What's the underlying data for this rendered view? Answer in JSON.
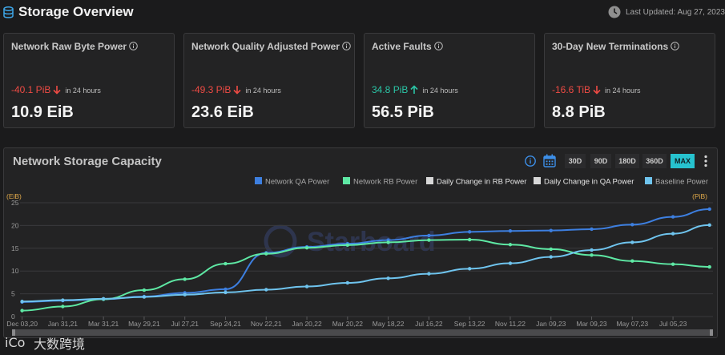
{
  "header": {
    "title": "Storage Overview",
    "last_updated": "Last Updated: Aug 27, 2023",
    "icons": [
      "database-icon",
      "clock-icon"
    ]
  },
  "stats": [
    {
      "title": "Network Raw Byte Power",
      "change": "-40.1 PiB",
      "direction": "down",
      "period": "in 24 hours",
      "value": "10.9 EiB",
      "color": "#ef4b44"
    },
    {
      "title": "Network Quality Adjusted Power",
      "change": "-49.3 PiB",
      "direction": "down",
      "period": "in 24 hours",
      "value": "23.6 EiB",
      "color": "#ef4b44"
    },
    {
      "title": "Active Faults",
      "change": "34.8 PiB",
      "direction": "up",
      "period": "in 24 hours",
      "value": "56.5 PiB",
      "color": "#2bc5a6"
    },
    {
      "title": "30-Day New Terminations",
      "change": "-16.6 TiB",
      "direction": "down",
      "period": "in 24 hours",
      "value": "8.8 PiB",
      "color": "#ef4b44"
    }
  ],
  "chart_panel": {
    "title": "Network Storage Capacity",
    "ranges": [
      "30D",
      "90D",
      "180D",
      "360D",
      "MAX"
    ],
    "active_range": "MAX",
    "watermark": "Starboard"
  },
  "footer": {
    "brand": "大数跨境",
    "logo_text": "iCo"
  },
  "chart_data": {
    "type": "line",
    "legend_position": "top-right",
    "legend": [
      {
        "name": "Network QA Power",
        "color": "#3d7fe0"
      },
      {
        "name": "Network RB Power",
        "color": "#5ee8a4"
      },
      {
        "name": "Daily Change in RB Power",
        "color": "#d8d8d8"
      },
      {
        "name": "Daily Change in QA Power",
        "color": "#d8d8d8"
      },
      {
        "name": "Baseline Power",
        "color": "#6fc4ee"
      }
    ],
    "y_left_unit": "(EiB)",
    "y_right_unit": "(PiB)",
    "ylim": [
      0,
      25
    ],
    "y_ticks": [
      0,
      5,
      10,
      15,
      20,
      25
    ],
    "grid": true,
    "x_range": [
      "2020-11-30",
      "2023-09-01"
    ],
    "x_ticks": [
      {
        "label": "Dec 03,20",
        "date": "2020-12-03"
      },
      {
        "label": "Jan 31,21",
        "date": "2021-01-31"
      },
      {
        "label": "Mar 31,21",
        "date": "2021-03-31"
      },
      {
        "label": "May 29,21",
        "date": "2021-05-29"
      },
      {
        "label": "Jul 27,21",
        "date": "2021-07-27"
      },
      {
        "label": "Sep 24,21",
        "date": "2021-09-24"
      },
      {
        "label": "Nov 22,21",
        "date": "2021-11-22"
      },
      {
        "label": "Jan 20,22",
        "date": "2022-01-20"
      },
      {
        "label": "Mar 20,22",
        "date": "2022-03-20"
      },
      {
        "label": "May 18,22",
        "date": "2022-05-18"
      },
      {
        "label": "Jul 16,22",
        "date": "2022-07-16"
      },
      {
        "label": "Sep 13,22",
        "date": "2022-09-13"
      },
      {
        "label": "Nov 11,22",
        "date": "2022-11-11"
      },
      {
        "label": "Jan 09,23",
        "date": "2023-01-09"
      },
      {
        "label": "Mar 09,23",
        "date": "2023-03-09"
      },
      {
        "label": "May 07,23",
        "date": "2023-05-07"
      },
      {
        "label": "Jul 05,23",
        "date": "2023-07-05"
      }
    ],
    "series": [
      {
        "name": "Network QA Power",
        "color": "#3d7fe0",
        "points": [
          [
            "2020-12-03",
            3.2
          ],
          [
            "2021-01-31",
            3.5
          ],
          [
            "2021-03-31",
            3.8
          ],
          [
            "2021-05-29",
            4.4
          ],
          [
            "2021-07-27",
            5.2
          ],
          [
            "2021-09-24",
            6.0
          ],
          [
            "2021-11-22",
            14.0
          ],
          [
            "2022-01-20",
            15.3
          ],
          [
            "2022-03-20",
            16.0
          ],
          [
            "2022-05-18",
            16.8
          ],
          [
            "2022-07-16",
            17.8
          ],
          [
            "2022-09-13",
            18.6
          ],
          [
            "2022-11-11",
            18.8
          ],
          [
            "2023-01-09",
            18.9
          ],
          [
            "2023-03-09",
            19.2
          ],
          [
            "2023-05-07",
            20.2
          ],
          [
            "2023-07-05",
            21.9
          ],
          [
            "2023-08-27",
            23.6
          ]
        ]
      },
      {
        "name": "Network RB Power",
        "color": "#5ee8a4",
        "points": [
          [
            "2020-12-03",
            1.3
          ],
          [
            "2021-01-31",
            2.2
          ],
          [
            "2021-03-31",
            3.8
          ],
          [
            "2021-05-29",
            5.8
          ],
          [
            "2021-07-27",
            8.2
          ],
          [
            "2021-09-24",
            11.6
          ],
          [
            "2021-11-22",
            13.8
          ],
          [
            "2022-01-20",
            15.1
          ],
          [
            "2022-03-20",
            15.7
          ],
          [
            "2022-05-18",
            16.3
          ],
          [
            "2022-07-16",
            16.8
          ],
          [
            "2022-09-13",
            16.9
          ],
          [
            "2022-11-11",
            15.8
          ],
          [
            "2023-01-09",
            14.8
          ],
          [
            "2023-03-09",
            13.5
          ],
          [
            "2023-05-07",
            12.2
          ],
          [
            "2023-07-05",
            11.5
          ],
          [
            "2023-08-27",
            10.9
          ]
        ]
      },
      {
        "name": "Baseline Power",
        "color": "#6fc4ee",
        "points": [
          [
            "2020-12-03",
            3.3
          ],
          [
            "2021-01-31",
            3.6
          ],
          [
            "2021-03-31",
            3.9
          ],
          [
            "2021-05-29",
            4.3
          ],
          [
            "2021-07-27",
            4.8
          ],
          [
            "2021-09-24",
            5.3
          ],
          [
            "2021-11-22",
            5.9
          ],
          [
            "2022-01-20",
            6.6
          ],
          [
            "2022-03-20",
            7.4
          ],
          [
            "2022-05-18",
            8.4
          ],
          [
            "2022-07-16",
            9.4
          ],
          [
            "2022-09-13",
            10.5
          ],
          [
            "2022-11-11",
            11.7
          ],
          [
            "2023-01-09",
            13.1
          ],
          [
            "2023-03-09",
            14.6
          ],
          [
            "2023-05-07",
            16.3
          ],
          [
            "2023-07-05",
            18.2
          ],
          [
            "2023-08-27",
            20.1
          ]
        ]
      }
    ]
  }
}
